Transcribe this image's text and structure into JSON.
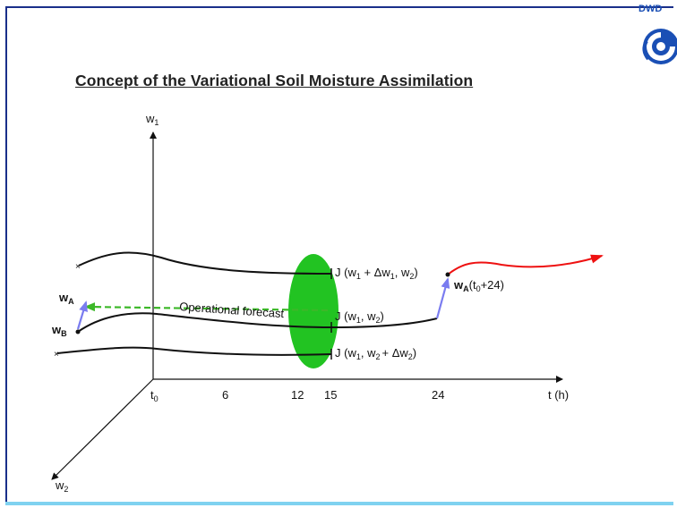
{
  "title": "Concept of the Variational Soil Moisture Assimilation",
  "logo": {
    "text": "DWD",
    "icon": "dwd-swirl-logo",
    "color": "#1a4fb5"
  },
  "axes": {
    "y_label": {
      "base": "w",
      "sub": "1"
    },
    "x_label": "t (h)",
    "z_label": {
      "base": "w",
      "sub": "2"
    },
    "x_ticks": [
      {
        "base": "t",
        "sub": "0"
      },
      {
        "base": "6",
        "sub": ""
      },
      {
        "base": "12",
        "sub": ""
      },
      {
        "base": "15",
        "sub": ""
      },
      {
        "base": "24",
        "sub": ""
      }
    ]
  },
  "labels": {
    "wA": {
      "base": "w",
      "sub": "A"
    },
    "wB": {
      "base": "w",
      "sub": "B"
    },
    "operational": "Operational forecast",
    "j_top": {
      "pre": "J (w",
      "s1": "1",
      "mid": " + Δw",
      "s2": "1",
      "post": ", w",
      "s3": "2",
      "end": ")"
    },
    "j_mid": {
      "pre": "J (w",
      "s1": "1",
      "mid": ", w",
      "s2": "2",
      "end": ")"
    },
    "j_bot": {
      "pre": "J (w",
      "s1": "1",
      "mid": ", w",
      "s2": "2",
      "post": "+ Δw",
      "s3": "2",
      "end": ")"
    },
    "wA_24": {
      "base": "w",
      "sub": "A",
      "rest": "(t",
      "sub2": "0",
      "end": "+24)"
    }
  },
  "colors": {
    "curve": "#111111",
    "ellipse": "#22c322",
    "operational_arrow": "#3cb828",
    "analysis_arrow": "#7a7cf0",
    "forecast_arrow": "#ee1111",
    "frame": "#1a2f8a",
    "frame_bottom": "#7fd2f0"
  }
}
